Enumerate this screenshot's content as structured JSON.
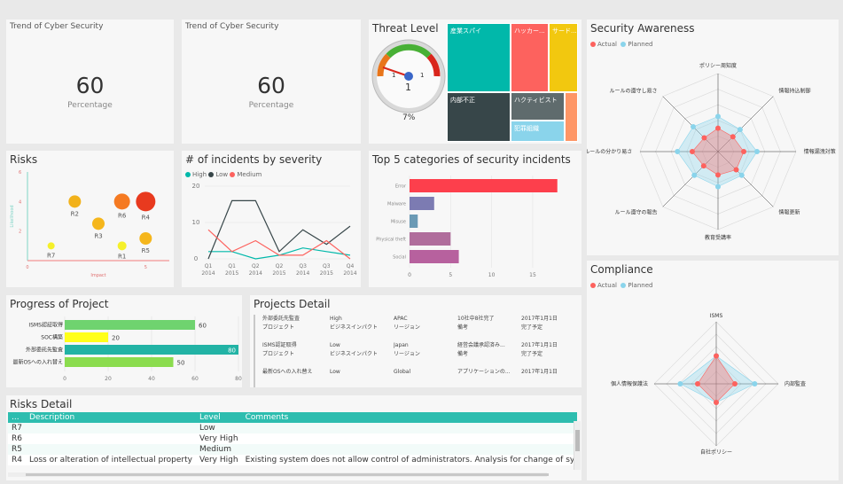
{
  "kpi1": {
    "title": "Trend of Cyber Security",
    "value": "60",
    "label": "Percentage"
  },
  "kpi2": {
    "title": "Trend of Cyber Security",
    "value": "60",
    "label": "Percentage"
  },
  "threat": {
    "title": "Threat Level",
    "gauge_min": "1",
    "gauge_max": "1",
    "gauge_value": "1",
    "percent": "7%",
    "gauge_fraction": 0.07
  },
  "treemap": {
    "cells": [
      {
        "label": "産業スパイ",
        "color": "#01b8aa"
      },
      {
        "label": "ハッカー...",
        "color": "#fd625e"
      },
      {
        "label": "サード...",
        "color": "#f2c80f"
      },
      {
        "label": "内部不正",
        "color": "#374649"
      },
      {
        "label": "ハクティビスト",
        "color": "#5f6b6d"
      },
      {
        "label": "犯罪組織",
        "color": "#8ad4eb"
      },
      {
        "label": "",
        "color": "#fe9666"
      }
    ]
  },
  "awareness": {
    "title": "Security Awareness",
    "legend": [
      "Actual",
      "Planned"
    ],
    "axes": [
      "ポリシー周知度",
      "情報持込制御",
      "情報漏洩対策",
      "情報更新",
      "教育受講率",
      "ルール遵守の報告",
      "ルールの分かり易さ",
      "ルールの遵守し易さ"
    ]
  },
  "compliance": {
    "title": "Compliance",
    "legend": [
      "Actual",
      "Planned"
    ],
    "axes": [
      "ISMS",
      "内部監査",
      "自社ポリシー",
      "個人情報保護法"
    ]
  },
  "risks": {
    "title": "Risks",
    "xlabel": "Impact",
    "ylabel": "Likelihood",
    "yticks": [
      "6",
      "4",
      "2"
    ],
    "xticks": [
      "0",
      "5"
    ],
    "items": [
      "R2",
      "R6",
      "R4",
      "R3",
      "R5",
      "R7",
      "R1"
    ]
  },
  "incidents": {
    "title": "# of incidents by severity",
    "legend": [
      "High",
      "Low",
      "Medium"
    ],
    "yticks": [
      "20",
      "10",
      "0"
    ],
    "xlabels": [
      [
        "Q1",
        "2014"
      ],
      [
        "Q1",
        "2015"
      ],
      [
        "Q2",
        "2014"
      ],
      [
        "Q2",
        "2015"
      ],
      [
        "Q3",
        "2014"
      ],
      [
        "Q3",
        "2015"
      ],
      [
        "Q4",
        "2014"
      ]
    ]
  },
  "top5": {
    "title": "Top 5 categories of security incidents",
    "xticks": [
      "0",
      "5",
      "10",
      "15"
    ]
  },
  "progress": {
    "title": "Progress of Project",
    "xticks": [
      "0",
      "20",
      "40",
      "60",
      "80"
    ]
  },
  "projects": {
    "title": "Projects Detail",
    "rows": [
      [
        "外部委託先監査",
        "プロジェクト",
        "High",
        "ビジネスインパクト",
        "APAC",
        "リージョン",
        "10社中8社完了",
        "備考",
        "2017年1月1日",
        "完了予定"
      ],
      [
        "ISMS認証取得",
        "プロジェクト",
        "Low",
        "ビジネスインパクト",
        "Japan",
        "リージョン",
        "経営会議承認済み...",
        "備考",
        "2017年1月1日",
        "完了予定"
      ],
      [
        "最新OSへの入れ替え",
        "",
        "Low",
        "",
        "Global",
        "",
        "アプリケーションの...",
        "",
        "2017年1月1日",
        ""
      ]
    ]
  },
  "riskDetail": {
    "title": "Risks Detail",
    "headers": [
      "...",
      "Description",
      "Level",
      "Comments"
    ],
    "rows": [
      [
        "R7",
        "",
        "Low",
        ""
      ],
      [
        "R6",
        "",
        "Very High",
        ""
      ],
      [
        "R5",
        "",
        "Medium",
        ""
      ],
      [
        "R4",
        "Loss or alteration of intellectual property",
        "Very High",
        "Existing system does not allow control of administrators. Analysis for change of system in"
      ]
    ]
  },
  "chart_data": [
    {
      "type": "scatter",
      "title": "Risks",
      "xlabel": "Impact",
      "ylabel": "Likelihood",
      "xlim": [
        0,
        6
      ],
      "ylim": [
        0,
        6
      ],
      "points": [
        {
          "label": "R2",
          "x": 2.0,
          "y": 4.0,
          "size": 7,
          "color": "#f2b21b"
        },
        {
          "label": "R6",
          "x": 4.0,
          "y": 4.0,
          "size": 9,
          "color": "#f57a22"
        },
        {
          "label": "R4",
          "x": 5.0,
          "y": 4.0,
          "size": 11,
          "color": "#e83a1f"
        },
        {
          "label": "R3",
          "x": 3.0,
          "y": 2.5,
          "size": 7,
          "color": "#f5b61c"
        },
        {
          "label": "R5",
          "x": 5.0,
          "y": 1.5,
          "size": 7,
          "color": "#f5b61c"
        },
        {
          "label": "R7",
          "x": 1.0,
          "y": 1.0,
          "size": 4,
          "color": "#f5f02a"
        },
        {
          "label": "R1",
          "x": 4.0,
          "y": 1.0,
          "size": 5,
          "color": "#f5f02a"
        }
      ]
    },
    {
      "type": "line",
      "title": "# of incidents by severity",
      "categories": [
        "Q1 2014",
        "Q1 2015",
        "Q2 2014",
        "Q2 2015",
        "Q3 2014",
        "Q3 2015",
        "Q4 2014"
      ],
      "ylim": [
        0,
        20
      ],
      "series": [
        {
          "name": "High",
          "color": "#01b8aa",
          "values": [
            2,
            2,
            0,
            1,
            3,
            2,
            1
          ]
        },
        {
          "name": "Low",
          "color": "#374649",
          "values": [
            0,
            16,
            16,
            2,
            8,
            4,
            9
          ]
        },
        {
          "name": "Medium",
          "color": "#fd625e",
          "values": [
            8,
            2,
            5,
            1,
            1,
            5,
            0
          ]
        }
      ]
    },
    {
      "type": "bar",
      "orientation": "horizontal",
      "title": "Top 5 categories of security incidents",
      "categories": [
        "Error",
        "Malware",
        "Misuse",
        "Physical theft",
        "Social"
      ],
      "values": [
        18,
        3,
        1,
        5,
        6
      ],
      "colors": [
        "#fd3f4c",
        "#7c7bb2",
        "#6b9ab5",
        "#b06d9c",
        "#b7619e"
      ],
      "xlim": [
        0,
        19
      ]
    },
    {
      "type": "bar",
      "orientation": "horizontal",
      "title": "Progress of Project",
      "categories": [
        "ISMS認証取得",
        "SOC構築",
        "外部委託先監査",
        "最新OSへの入れ替え"
      ],
      "values": [
        60,
        20,
        80,
        50
      ],
      "colors": [
        "#6fd36f",
        "#ffff1a",
        "#22b3a5",
        "#8bdc4e"
      ],
      "xlim": [
        0,
        80
      ]
    },
    {
      "type": "radar",
      "title": "Security Awareness",
      "categories": [
        "ポリシー周知度",
        "情報持込制御",
        "情報漏洩対策",
        "情報更新",
        "教育受講率",
        "ルール遵守の報告",
        "ルールの分かり易さ",
        "ルールの遵守し易さ"
      ],
      "series": [
        {
          "name": "Actual",
          "color": "#fd625e",
          "values": [
            0.3,
            0.27,
            0.33,
            0.33,
            0.3,
            0.26,
            0.33,
            0.25
          ]
        },
        {
          "name": "Planned",
          "color": "#8ad4eb",
          "values": [
            0.45,
            0.4,
            0.5,
            0.43,
            0.45,
            0.43,
            0.52,
            0.45
          ]
        }
      ]
    },
    {
      "type": "radar",
      "title": "Compliance",
      "categories": [
        "ISMS",
        "内部監査",
        "自社ポリシー",
        "個人情報保護法"
      ],
      "series": [
        {
          "name": "Actual",
          "color": "#fd625e",
          "values": [
            0.45,
            0.3,
            0.3,
            0.3
          ]
        },
        {
          "name": "Planned",
          "color": "#8ad4eb",
          "values": [
            0.45,
            0.62,
            0.3,
            0.58
          ]
        }
      ]
    }
  ]
}
